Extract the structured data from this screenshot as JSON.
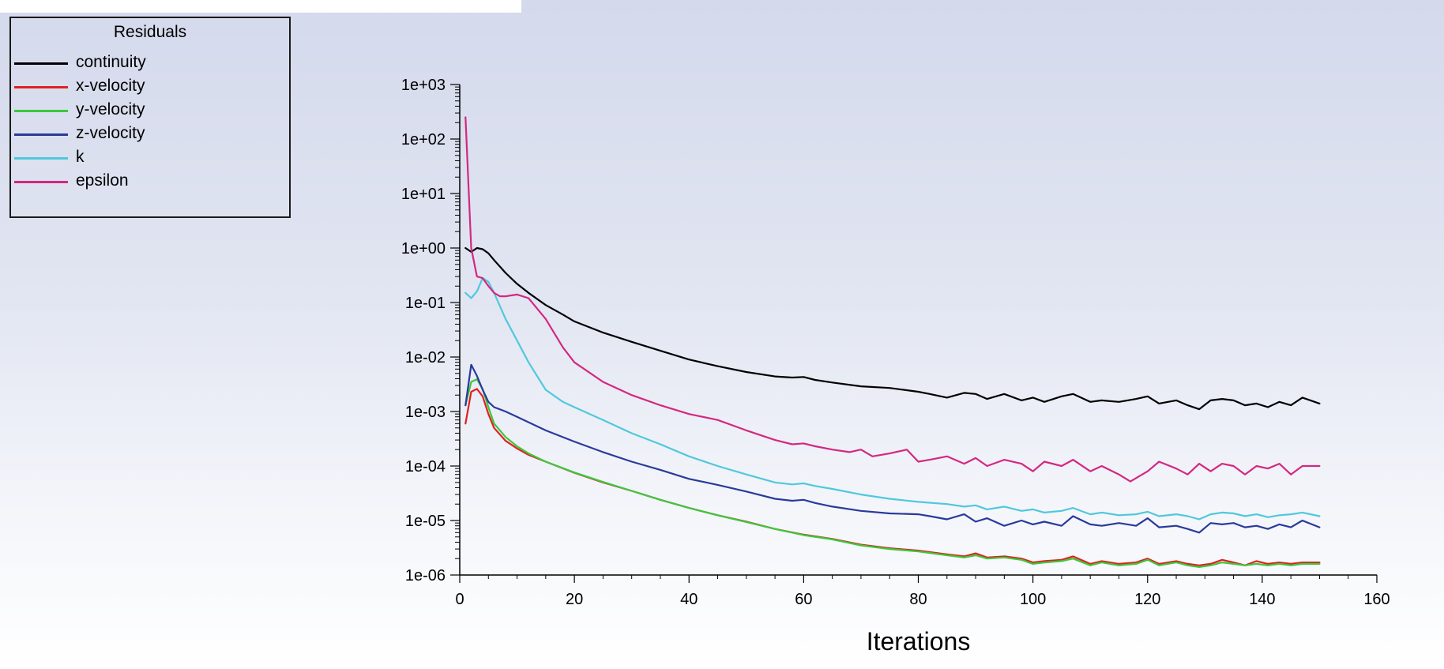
{
  "chart_data": {
    "type": "line",
    "title": "",
    "xlabel": "Iterations",
    "ylabel": "",
    "yscale": "log",
    "xlim": [
      0,
      160
    ],
    "ylim": [
      1e-06,
      1000
    ],
    "xticks": [
      0,
      20,
      40,
      60,
      80,
      100,
      120,
      140,
      160
    ],
    "xtick_labels": [
      "0",
      "20",
      "40",
      "60",
      "80",
      "100",
      "120",
      "140",
      "160"
    ],
    "yticks": [
      1e-06,
      1e-05,
      0.0001,
      0.001,
      0.01,
      0.1,
      1,
      10,
      100,
      1000
    ],
    "ytick_labels": [
      "1e-06",
      "1e-05",
      "1e-04",
      "1e-03",
      "1e-02",
      "1e-01",
      "1e+00",
      "1e+01",
      "1e+02",
      "1e+03"
    ],
    "legend": {
      "title": "Residuals",
      "position": "top-left"
    },
    "series": [
      {
        "name": "continuity",
        "color": "#000000",
        "x": [
          1,
          2,
          3,
          4,
          5,
          6,
          8,
          10,
          12,
          15,
          18,
          20,
          25,
          30,
          35,
          40,
          45,
          50,
          55,
          58,
          60,
          62,
          65,
          70,
          75,
          80,
          82,
          85,
          88,
          90,
          92,
          95,
          98,
          100,
          102,
          105,
          107,
          110,
          112,
          115,
          118,
          120,
          122,
          125,
          127,
          129,
          131,
          133,
          135,
          137,
          139,
          141,
          143,
          145,
          147,
          150
        ],
        "y": [
          1,
          0.85,
          1.0,
          0.95,
          0.8,
          0.6,
          0.35,
          0.22,
          0.15,
          0.09,
          0.06,
          0.045,
          0.028,
          0.019,
          0.013,
          0.009,
          0.0068,
          0.0053,
          0.0044,
          0.0042,
          0.0043,
          0.0038,
          0.0034,
          0.0029,
          0.0027,
          0.0023,
          0.0021,
          0.0018,
          0.0022,
          0.0021,
          0.0017,
          0.0021,
          0.0016,
          0.0018,
          0.0015,
          0.0019,
          0.0021,
          0.0015,
          0.0016,
          0.0015,
          0.0017,
          0.0019,
          0.0014,
          0.0016,
          0.0013,
          0.0011,
          0.0016,
          0.0017,
          0.0016,
          0.0013,
          0.0014,
          0.0012,
          0.0015,
          0.0013,
          0.0018,
          0.0014
        ]
      },
      {
        "name": "x-velocity",
        "color": "#e02020",
        "x": [
          1,
          2,
          3,
          4,
          5,
          6,
          8,
          10,
          12,
          15,
          20,
          25,
          30,
          35,
          40,
          45,
          50,
          55,
          60,
          65,
          70,
          75,
          80,
          85,
          88,
          90,
          92,
          95,
          98,
          100,
          102,
          105,
          107,
          110,
          112,
          115,
          118,
          120,
          122,
          125,
          127,
          129,
          131,
          133,
          135,
          137,
          139,
          141,
          143,
          145,
          147,
          150
        ],
        "y": [
          0.0006,
          0.0023,
          0.0026,
          0.0019,
          0.0009,
          0.0005,
          0.00029,
          0.00021,
          0.00016,
          0.00012,
          7.5e-05,
          5e-05,
          3.5e-05,
          2.4e-05,
          1.7e-05,
          1.25e-05,
          9.5e-06,
          7e-06,
          5.5e-06,
          4.6e-06,
          3.6e-06,
          3.1e-06,
          2.8e-06,
          2.4e-06,
          2.2e-06,
          2.5e-06,
          2.1e-06,
          2.2e-06,
          2e-06,
          1.7e-06,
          1.8e-06,
          1.9e-06,
          2.2e-06,
          1.6e-06,
          1.8e-06,
          1.6e-06,
          1.7e-06,
          2e-06,
          1.6e-06,
          1.8e-06,
          1.6e-06,
          1.5e-06,
          1.6e-06,
          1.9e-06,
          1.7e-06,
          1.5e-06,
          1.8e-06,
          1.6e-06,
          1.7e-06,
          1.6e-06,
          1.7e-06,
          1.7e-06
        ]
      },
      {
        "name": "y-velocity",
        "color": "#3cc83c",
        "x": [
          1,
          2,
          3,
          4,
          5,
          6,
          8,
          10,
          12,
          15,
          20,
          25,
          30,
          35,
          40,
          45,
          50,
          55,
          60,
          65,
          70,
          75,
          80,
          85,
          88,
          90,
          92,
          95,
          98,
          100,
          102,
          105,
          107,
          110,
          112,
          115,
          118,
          120,
          122,
          125,
          127,
          129,
          131,
          133,
          135,
          137,
          139,
          141,
          143,
          145,
          147,
          150
        ],
        "y": [
          0.0013,
          0.0035,
          0.0039,
          0.0026,
          0.0012,
          0.0006,
          0.00034,
          0.00023,
          0.00017,
          0.00012,
          7.6e-05,
          5.1e-05,
          3.5e-05,
          2.4e-05,
          1.7e-05,
          1.25e-05,
          9.4e-06,
          7e-06,
          5.4e-06,
          4.5e-06,
          3.5e-06,
          3e-06,
          2.7e-06,
          2.3e-06,
          2.1e-06,
          2.3e-06,
          2e-06,
          2.1e-06,
          1.9e-06,
          1.6e-06,
          1.7e-06,
          1.8e-06,
          2e-06,
          1.5e-06,
          1.7e-06,
          1.5e-06,
          1.6e-06,
          1.9e-06,
          1.5e-06,
          1.7e-06,
          1.5e-06,
          1.4e-06,
          1.5e-06,
          1.7e-06,
          1.6e-06,
          1.5e-06,
          1.6e-06,
          1.5e-06,
          1.6e-06,
          1.5e-06,
          1.6e-06,
          1.6e-06
        ]
      },
      {
        "name": "z-velocity",
        "color": "#2a3a9a",
        "x": [
          1,
          2,
          3,
          4,
          5,
          6,
          8,
          10,
          15,
          20,
          25,
          30,
          35,
          40,
          45,
          50,
          55,
          58,
          60,
          62,
          65,
          70,
          75,
          80,
          82,
          85,
          88,
          90,
          92,
          95,
          98,
          100,
          102,
          105,
          107,
          110,
          112,
          115,
          118,
          120,
          122,
          125,
          127,
          129,
          131,
          133,
          135,
          137,
          139,
          141,
          143,
          145,
          147,
          150
        ],
        "y": [
          0.0013,
          0.0072,
          0.0045,
          0.0025,
          0.0015,
          0.0012,
          0.001,
          0.0008,
          0.00045,
          0.00028,
          0.00018,
          0.00012,
          8.5e-05,
          5.8e-05,
          4.5e-05,
          3.4e-05,
          2.5e-05,
          2.3e-05,
          2.4e-05,
          2.1e-05,
          1.8e-05,
          1.5e-05,
          1.35e-05,
          1.3e-05,
          1.2e-05,
          1.05e-05,
          1.3e-05,
          9.5e-06,
          1.1e-05,
          8e-06,
          1e-05,
          8.5e-06,
          9.5e-06,
          8e-06,
          1.2e-05,
          8.5e-06,
          8e-06,
          9e-06,
          8e-06,
          1.1e-05,
          7.5e-06,
          8e-06,
          7e-06,
          6e-06,
          9e-06,
          8.5e-06,
          9e-06,
          7.5e-06,
          8e-06,
          7e-06,
          8.5e-06,
          7.5e-06,
          1e-05,
          7.5e-06
        ]
      },
      {
        "name": "k",
        "color": "#50c8dc",
        "x": [
          1,
          2,
          3,
          4,
          5,
          6,
          8,
          10,
          12,
          15,
          18,
          20,
          25,
          30,
          35,
          40,
          45,
          50,
          55,
          58,
          60,
          62,
          65,
          70,
          75,
          80,
          85,
          88,
          90,
          92,
          95,
          98,
          100,
          102,
          105,
          107,
          110,
          112,
          115,
          118,
          120,
          122,
          125,
          127,
          129,
          131,
          133,
          135,
          137,
          139,
          141,
          143,
          145,
          147,
          150
        ],
        "y": [
          0.15,
          0.12,
          0.16,
          0.28,
          0.24,
          0.15,
          0.05,
          0.02,
          0.008,
          0.0025,
          0.0015,
          0.0012,
          0.0007,
          0.0004,
          0.00025,
          0.00015,
          0.0001,
          7e-05,
          5e-05,
          4.6e-05,
          4.8e-05,
          4.3e-05,
          3.8e-05,
          3e-05,
          2.5e-05,
          2.2e-05,
          2e-05,
          1.8e-05,
          1.9e-05,
          1.6e-05,
          1.8e-05,
          1.5e-05,
          1.6e-05,
          1.4e-05,
          1.5e-05,
          1.7e-05,
          1.3e-05,
          1.4e-05,
          1.25e-05,
          1.3e-05,
          1.45e-05,
          1.2e-05,
          1.3e-05,
          1.2e-05,
          1.05e-05,
          1.3e-05,
          1.4e-05,
          1.35e-05,
          1.2e-05,
          1.3e-05,
          1.15e-05,
          1.25e-05,
          1.3e-05,
          1.4e-05,
          1.2e-05
        ]
      },
      {
        "name": "epsilon",
        "color": "#d42880",
        "x": [
          1,
          2,
          3,
          4,
          5,
          6,
          7,
          8,
          10,
          12,
          15,
          18,
          20,
          25,
          30,
          35,
          40,
          45,
          50,
          55,
          58,
          60,
          62,
          65,
          68,
          70,
          72,
          75,
          78,
          80,
          82,
          85,
          88,
          90,
          92,
          95,
          98,
          100,
          102,
          105,
          107,
          110,
          112,
          115,
          117,
          120,
          122,
          125,
          127,
          129,
          131,
          133,
          135,
          137,
          139,
          141,
          143,
          145,
          147,
          150
        ],
        "y": [
          250,
          1.0,
          0.3,
          0.28,
          0.2,
          0.15,
          0.13,
          0.13,
          0.14,
          0.12,
          0.05,
          0.015,
          0.008,
          0.0035,
          0.002,
          0.0013,
          0.0009,
          0.0007,
          0.00045,
          0.0003,
          0.00025,
          0.00026,
          0.00023,
          0.0002,
          0.00018,
          0.0002,
          0.00015,
          0.00017,
          0.0002,
          0.00012,
          0.00013,
          0.00015,
          0.00011,
          0.00014,
          0.0001,
          0.00013,
          0.00011,
          8e-05,
          0.00012,
          0.0001,
          0.00013,
          8e-05,
          0.0001,
          7e-05,
          5.2e-05,
          8e-05,
          0.00012,
          9e-05,
          7e-05,
          0.00011,
          8e-05,
          0.00011,
          0.0001,
          7e-05,
          0.0001,
          9e-05,
          0.00011,
          7e-05,
          0.0001,
          0.0001
        ]
      }
    ]
  }
}
